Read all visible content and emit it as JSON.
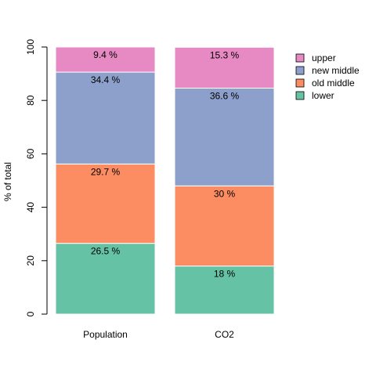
{
  "chart_data": {
    "type": "bar",
    "stacked": true,
    "categories": [
      "Population",
      "CO2"
    ],
    "series": [
      {
        "name": "lower",
        "color": "#66c2a5",
        "values": [
          26.5,
          18
        ],
        "labels": [
          "26.5 %",
          "18 %"
        ]
      },
      {
        "name": "old middle",
        "color": "#fc8d62",
        "values": [
          29.7,
          30
        ],
        "labels": [
          "29.7 %",
          "30 %"
        ]
      },
      {
        "name": "new middle",
        "color": "#8da0cb",
        "values": [
          34.4,
          36.6
        ],
        "labels": [
          "34.4 %",
          "36.6 %"
        ]
      },
      {
        "name": "upper",
        "color": "#e78ac3",
        "values": [
          9.4,
          15.3
        ],
        "labels": [
          "9.4 %",
          "15.3 %"
        ]
      }
    ],
    "legend_order": [
      "upper",
      "new middle",
      "old middle",
      "lower"
    ],
    "ylabel": "% of total",
    "xlabel": "",
    "ylim": [
      0,
      100
    ],
    "yticks": [
      0,
      20,
      40,
      60,
      80,
      100
    ],
    "legend_position": "top-right",
    "grid": false
  }
}
